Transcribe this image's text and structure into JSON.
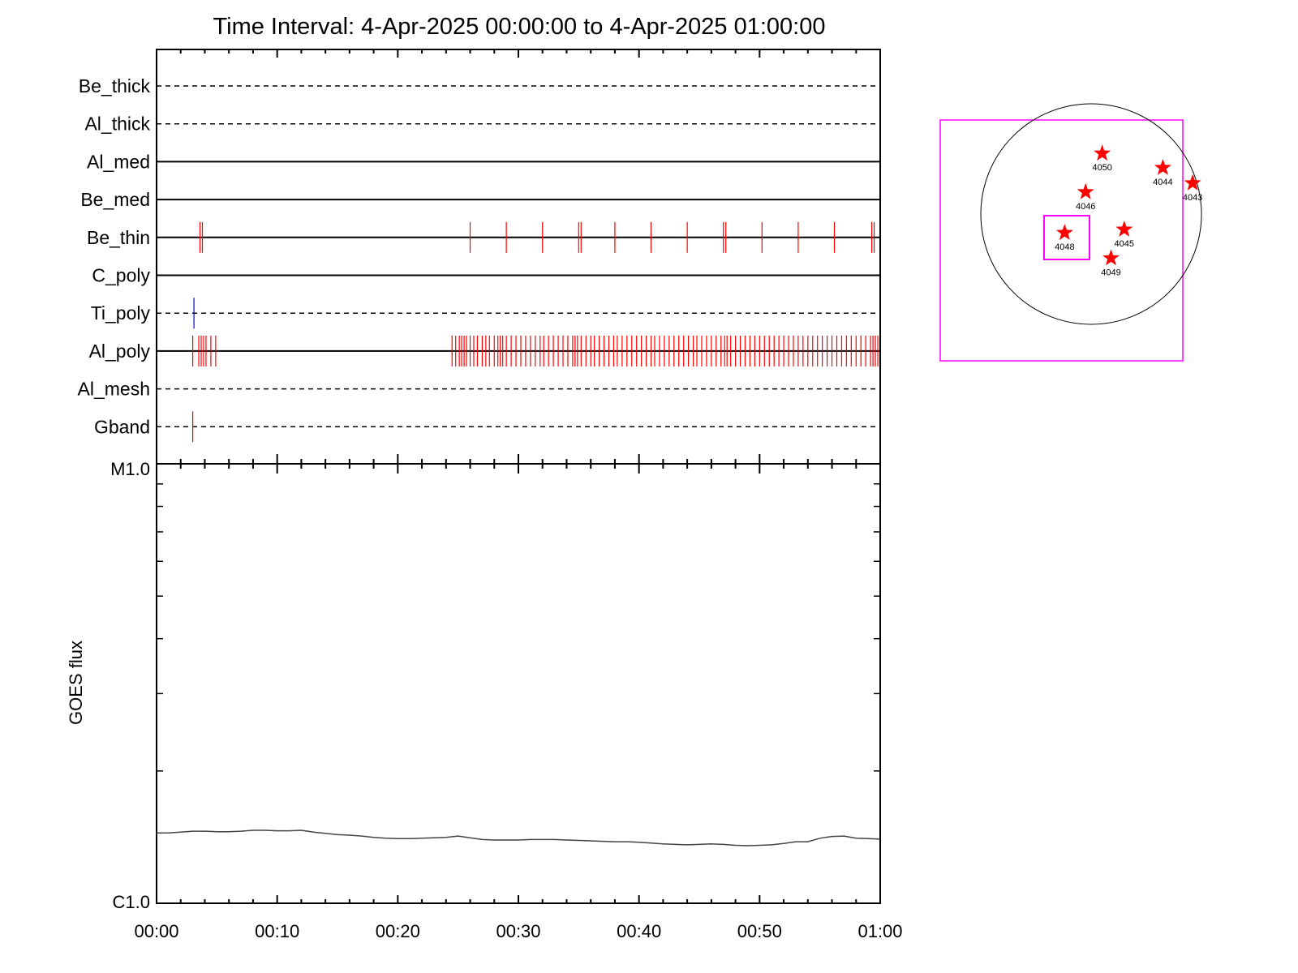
{
  "chart_data": [
    {
      "type": "timeline",
      "title": "Time Interval:  4-Apr-2025 00:00:00 to  4-Apr-2025 01:00:00",
      "x_range_minutes": [
        0,
        60
      ],
      "filters": [
        {
          "name": "Be_thick",
          "style": "dashed",
          "events": []
        },
        {
          "name": "Al_thick",
          "style": "dashed",
          "events": []
        },
        {
          "name": "Al_med",
          "style": "solid",
          "events": []
        },
        {
          "name": "Be_med",
          "style": "solid",
          "events": []
        },
        {
          "name": "Be_thin",
          "style": "solid",
          "color": "#ff0000",
          "events": [
            3.6,
            3.8,
            26.0,
            29.0,
            32.0,
            35.0,
            35.2,
            38.0,
            41.0,
            44.0,
            47.0,
            47.2,
            50.2,
            53.2,
            56.2,
            59.3,
            59.5
          ]
        },
        {
          "name": "C_poly",
          "style": "solid",
          "events": []
        },
        {
          "name": "Ti_poly",
          "style": "dashed",
          "color": "#0000cc",
          "events": [
            3.1
          ]
        },
        {
          "name": "Al_poly",
          "style": "solid",
          "color": "#ff0000",
          "events": [
            3.0,
            3.5,
            3.7,
            3.9,
            4.1,
            4.5,
            4.9,
            24.5,
            24.8,
            25.1,
            25.3,
            25.5,
            25.7,
            26.0,
            26.3,
            26.6,
            27.0,
            27.3,
            27.6,
            28.0,
            28.3,
            28.5,
            28.7,
            29.0,
            29.4,
            29.8,
            30.2,
            30.6,
            31.0,
            31.4,
            31.8,
            32.1,
            32.5,
            32.9,
            33.3,
            33.7,
            34.1,
            34.5,
            34.7,
            34.9,
            35.2,
            35.6,
            36.0,
            36.3,
            36.7,
            37.1,
            37.5,
            37.9,
            38.2,
            38.6,
            39.0,
            39.4,
            39.8,
            40.2,
            40.6,
            41.0,
            41.3,
            41.7,
            42.1,
            42.5,
            42.9,
            43.3,
            43.7,
            44.1,
            44.5,
            44.8,
            45.2,
            45.6,
            46.0,
            46.4,
            46.8,
            47.1,
            47.3,
            47.6,
            48.0,
            48.4,
            48.8,
            49.2,
            49.6,
            50.0,
            50.4,
            50.8,
            51.2,
            51.6,
            52.0,
            52.4,
            52.8,
            53.2,
            53.6,
            54.0,
            54.4,
            54.8,
            55.2,
            55.6,
            56.0,
            56.4,
            56.8,
            57.2,
            57.6,
            58.0,
            58.4,
            58.8,
            59.2,
            59.4,
            59.6,
            59.8
          ]
        },
        {
          "name": "Al_mesh",
          "style": "dashed",
          "events": []
        },
        {
          "name": "Gband",
          "style": "dashed",
          "color": "#ff0000",
          "events": [
            3.0
          ]
        }
      ]
    },
    {
      "type": "line",
      "ylabel": "GOES flux",
      "y_ticks": [
        "M1.0",
        "C1.0"
      ],
      "y_scale": "log",
      "x_ticks": [
        "00:00",
        "00:10",
        "00:20",
        "00:30",
        "00:40",
        "00:50",
        "01:00"
      ],
      "x_range_minutes": [
        0,
        60
      ],
      "ylim_log_fraction": [
        0,
        1
      ],
      "series": [
        {
          "color": "#444444",
          "x": [
            0,
            1,
            2,
            3,
            4,
            5,
            6,
            7,
            8,
            9,
            10,
            11,
            12,
            13,
            14,
            15,
            16,
            17,
            18,
            19,
            20,
            21,
            22,
            23,
            24,
            25,
            26,
            27,
            28,
            29,
            30,
            31,
            32,
            33,
            34,
            35,
            36,
            37,
            38,
            39,
            40,
            41,
            42,
            43,
            44,
            45,
            46,
            47,
            48,
            49,
            50,
            51,
            52,
            53,
            54,
            55,
            56,
            57,
            58,
            59,
            60
          ],
          "y": [
            0.16,
            0.16,
            0.162,
            0.164,
            0.164,
            0.163,
            0.163,
            0.164,
            0.166,
            0.166,
            0.165,
            0.165,
            0.166,
            0.162,
            0.159,
            0.156,
            0.155,
            0.153,
            0.15,
            0.148,
            0.147,
            0.147,
            0.148,
            0.149,
            0.15,
            0.153,
            0.149,
            0.145,
            0.144,
            0.144,
            0.144,
            0.145,
            0.145,
            0.145,
            0.144,
            0.143,
            0.142,
            0.141,
            0.14,
            0.14,
            0.139,
            0.137,
            0.135,
            0.134,
            0.133,
            0.134,
            0.135,
            0.134,
            0.132,
            0.131,
            0.132,
            0.133,
            0.136,
            0.14,
            0.14,
            0.148,
            0.152,
            0.153,
            0.148,
            0.147,
            0.146
          ]
        }
      ]
    },
    {
      "type": "map",
      "regions": [
        {
          "label": "4050",
          "x": 0.1,
          "y": -0.55
        },
        {
          "label": "4044",
          "x": 0.65,
          "y": -0.42
        },
        {
          "label": "4043",
          "x": 0.92,
          "y": -0.28
        },
        {
          "label": "4046",
          "x": -0.05,
          "y": -0.2
        },
        {
          "label": "4048",
          "x": -0.24,
          "y": 0.17
        },
        {
          "label": "4045",
          "x": 0.3,
          "y": 0.14
        },
        {
          "label": "4049",
          "x": 0.18,
          "y": 0.4
        }
      ],
      "colors": {
        "fov_box": "#ff00ff",
        "star": "#ff0000",
        "disk": "#000000"
      }
    }
  ]
}
